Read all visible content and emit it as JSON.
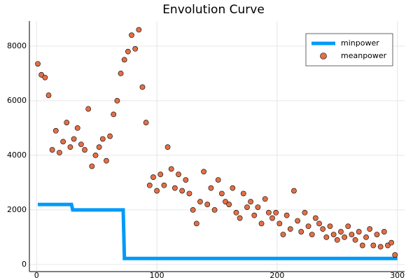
{
  "chart_data": {
    "type": "line-scatter",
    "title": "Envolution Curve",
    "xlim": [
      -6,
      306
    ],
    "ylim": [
      -260,
      8920
    ],
    "xticks": [
      0,
      100,
      200,
      300
    ],
    "yticks": [
      0,
      2000,
      4000,
      6000,
      8000
    ],
    "grid": true,
    "legend": "top-right",
    "series": [
      {
        "name": "minpower",
        "kind": "line",
        "color": "#009AFA",
        "x": [
          1,
          29,
          30,
          72,
          73,
          300
        ],
        "values": [
          2200,
          2200,
          2000,
          2000,
          220,
          220
        ]
      },
      {
        "name": "meanpower",
        "kind": "scatter",
        "color": "#E26F46",
        "x": [
          1,
          4,
          7,
          10,
          13,
          16,
          19,
          22,
          25,
          28,
          31,
          34,
          37,
          40,
          43,
          46,
          49,
          52,
          55,
          58,
          61,
          64,
          67,
          70,
          73,
          76,
          79,
          82,
          85,
          88,
          91,
          94,
          97,
          100,
          103,
          106,
          109,
          112,
          115,
          118,
          121,
          124,
          127,
          130,
          133,
          136,
          139,
          142,
          145,
          148,
          151,
          154,
          157,
          160,
          163,
          166,
          169,
          172,
          175,
          178,
          181,
          184,
          187,
          190,
          193,
          196,
          199,
          202,
          205,
          208,
          211,
          214,
          217,
          220,
          223,
          226,
          229,
          232,
          235,
          238,
          241,
          244,
          247,
          250,
          253,
          256,
          259,
          262,
          265,
          268,
          271,
          274,
          277,
          280,
          283,
          286,
          289,
          292,
          295,
          298
        ],
        "values": [
          7350,
          6950,
          6850,
          6200,
          4200,
          4900,
          4100,
          4500,
          5200,
          4300,
          4600,
          5000,
          4400,
          4200,
          5700,
          3600,
          4000,
          4300,
          4600,
          3800,
          4700,
          5500,
          6000,
          7000,
          7500,
          7800,
          8400,
          7900,
          8600,
          6500,
          5200,
          2900,
          3200,
          2700,
          3300,
          2900,
          4300,
          3500,
          2800,
          3300,
          2700,
          3100,
          2600,
          2000,
          1500,
          2300,
          3400,
          2200,
          2800,
          2000,
          3100,
          2600,
          2300,
          2200,
          2800,
          1900,
          1700,
          2600,
          2100,
          2300,
          1800,
          2100,
          1500,
          2400,
          1900,
          1700,
          1900,
          1500,
          1100,
          1800,
          1300,
          2700,
          1600,
          1200,
          1900,
          1400,
          1100,
          1700,
          1500,
          1300,
          1000,
          1400,
          1100,
          900,
          1200,
          1000,
          1400,
          1100,
          900,
          1200,
          700,
          1000,
          1300,
          700,
          1100,
          650,
          1200,
          700,
          800,
          350
        ]
      }
    ]
  }
}
